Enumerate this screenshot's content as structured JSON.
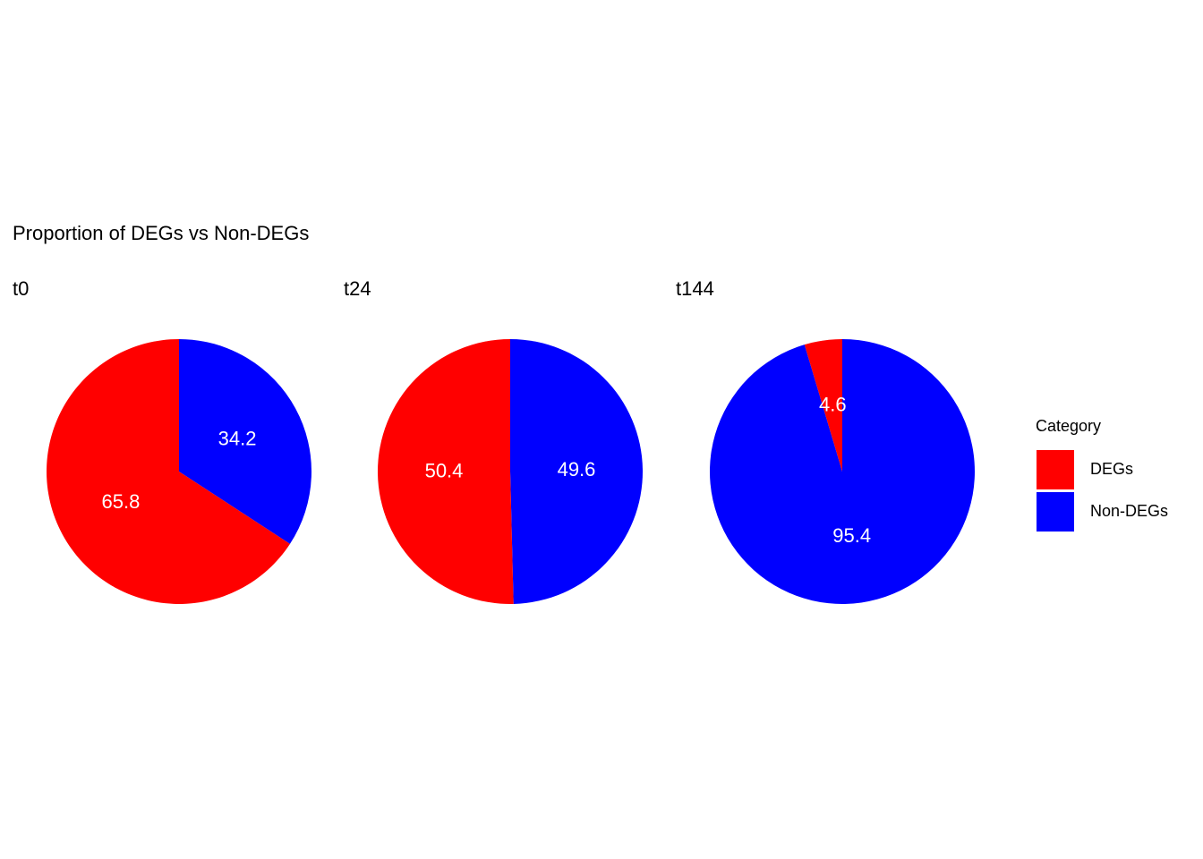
{
  "title": "Proportion of DEGs vs Non-DEGs",
  "legend_title": "Category",
  "chart_data": [
    {
      "type": "pie",
      "title": "t0",
      "categories": [
        "DEGs",
        "Non-DEGs"
      ],
      "values": [
        65.8,
        34.2
      ],
      "colors": [
        "#ff0000",
        "#0000ff"
      ]
    },
    {
      "type": "pie",
      "title": "t24",
      "categories": [
        "DEGs",
        "Non-DEGs"
      ],
      "values": [
        50.4,
        49.6
      ],
      "colors": [
        "#ff0000",
        "#0000ff"
      ]
    },
    {
      "type": "pie",
      "title": "t144",
      "categories": [
        "DEGs",
        "Non-DEGs"
      ],
      "values": [
        4.6,
        95.4
      ],
      "colors": [
        "#ff0000",
        "#0000ff"
      ]
    }
  ]
}
